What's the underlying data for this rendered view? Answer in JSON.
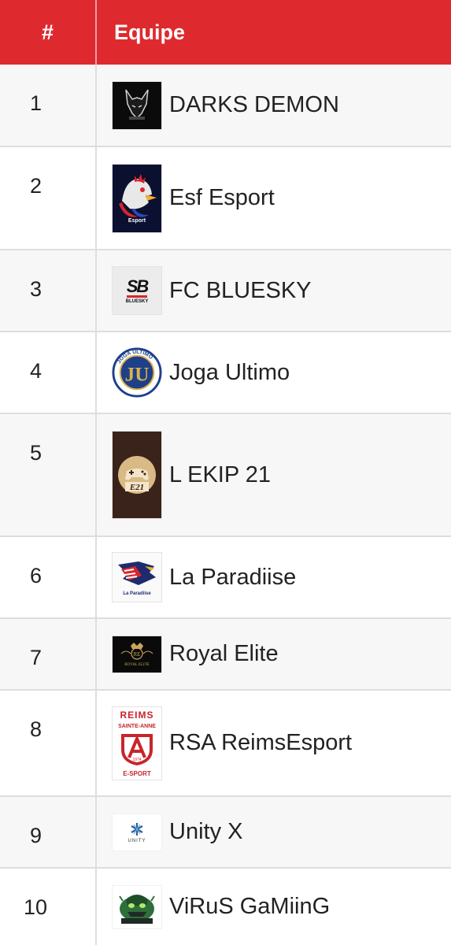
{
  "header": {
    "rank": "#",
    "team": "Equipe"
  },
  "rows": [
    {
      "rank": "1",
      "team": "DARKS DEMON",
      "logo_icon": "wolf-logo-icon"
    },
    {
      "rank": "2",
      "team": "Esf Esport",
      "logo_icon": "rooster-logo-icon",
      "logo_text": "Esport"
    },
    {
      "rank": "3",
      "team": "FC BLUESKY",
      "logo_icon": "sb-monogram-logo-icon",
      "logo_text": "SB",
      "logo_subtext": "BLUESKY"
    },
    {
      "rank": "4",
      "team": "Joga Ultimo",
      "logo_icon": "joga-ultimo-crest-icon",
      "logo_text": "JOGA ULTIMO"
    },
    {
      "rank": "5",
      "team": "L EKIP 21",
      "logo_icon": "gamepad-logo-icon",
      "logo_text": "E21"
    },
    {
      "rank": "6",
      "team": "La Paradiise",
      "logo_icon": "eagle-logo-icon",
      "logo_text": "La Paradiise"
    },
    {
      "rank": "7",
      "team": "Royal Elite",
      "logo_icon": "royal-elite-crest-icon",
      "logo_text": "ROYAL ELITE"
    },
    {
      "rank": "8",
      "team": "RSA ReimsEsport",
      "logo_icon": "reims-crest-icon",
      "logo_text_top": "REIMS",
      "logo_text_mid": "SAINTE-ANNE",
      "logo_text_bottom": "E-SPORT",
      "logo_year": "1974"
    },
    {
      "rank": "9",
      "team": "Unity X",
      "logo_icon": "unity-logo-icon",
      "logo_text": "UNITY"
    },
    {
      "rank": "10",
      "team": "ViRuS GaMiinG",
      "logo_icon": "virus-mascot-logo-icon"
    }
  ],
  "colors": {
    "header_bg": "#de2a2e",
    "row_border": "#dedede",
    "alt_row_bg": "#f7f7f7"
  }
}
